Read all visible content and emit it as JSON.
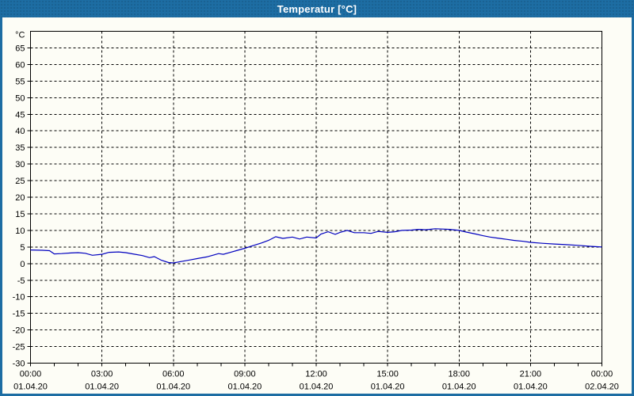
{
  "window": {
    "title": "Temperatur [°C]"
  },
  "colors": {
    "titlebar": "#1d6da3",
    "window_border": "#1d6da3",
    "chart_background": "#fdfdf6",
    "line_color": "#0000bf",
    "grid_color": "#000000",
    "text_color": "#000000"
  },
  "chart_data": {
    "type": "line",
    "title": "Temperatur [°C]",
    "grid": "dashed",
    "legend": "none",
    "y_axis": {
      "unit_label": "°C",
      "min": -30,
      "max": 70,
      "tick_min": -30,
      "tick_max": 65,
      "tick_step": 5
    },
    "x_axis": {
      "hours_span": 24,
      "minor_tick_step": 1,
      "ticks": [
        {
          "h": 0,
          "time": "00:00",
          "date": "01.04.20"
        },
        {
          "h": 3,
          "time": "03:00",
          "date": "01.04.20"
        },
        {
          "h": 6,
          "time": "06:00",
          "date": "01.04.20"
        },
        {
          "h": 9,
          "time": "09:00",
          "date": "01.04.20"
        },
        {
          "h": 12,
          "time": "12:00",
          "date": "01.04.20"
        },
        {
          "h": 15,
          "time": "15:00",
          "date": "01.04.20"
        },
        {
          "h": 18,
          "time": "18:00",
          "date": "01.04.20"
        },
        {
          "h": 21,
          "time": "21:00",
          "date": "01.04.20"
        },
        {
          "h": 24,
          "time": "00:00",
          "date": "02.04.20"
        }
      ]
    },
    "series": [
      {
        "name": "Temperatur",
        "color": "#0000bf",
        "points": [
          [
            0.0,
            4.1
          ],
          [
            0.5,
            4.0
          ],
          [
            0.8,
            3.9
          ],
          [
            1.0,
            2.9
          ],
          [
            1.3,
            3.0
          ],
          [
            1.7,
            3.2
          ],
          [
            2.0,
            3.3
          ],
          [
            2.3,
            3.1
          ],
          [
            2.6,
            2.5
          ],
          [
            3.0,
            2.8
          ],
          [
            3.3,
            3.4
          ],
          [
            3.7,
            3.5
          ],
          [
            4.0,
            3.3
          ],
          [
            4.3,
            2.9
          ],
          [
            4.7,
            2.4
          ],
          [
            5.0,
            1.8
          ],
          [
            5.2,
            2.1
          ],
          [
            5.5,
            1.0
          ],
          [
            5.8,
            0.3
          ],
          [
            6.0,
            0.2
          ],
          [
            6.3,
            0.6
          ],
          [
            6.7,
            1.1
          ],
          [
            7.0,
            1.5
          ],
          [
            7.4,
            2.0
          ],
          [
            7.7,
            2.6
          ],
          [
            7.9,
            3.0
          ],
          [
            8.1,
            2.8
          ],
          [
            8.4,
            3.4
          ],
          [
            8.7,
            4.0
          ],
          [
            9.0,
            4.6
          ],
          [
            9.3,
            5.3
          ],
          [
            9.7,
            6.2
          ],
          [
            10.0,
            7.0
          ],
          [
            10.3,
            8.1
          ],
          [
            10.6,
            7.6
          ],
          [
            11.0,
            8.0
          ],
          [
            11.3,
            7.4
          ],
          [
            11.6,
            8.0
          ],
          [
            12.0,
            7.7
          ],
          [
            12.2,
            8.9
          ],
          [
            12.5,
            9.6
          ],
          [
            12.8,
            8.8
          ],
          [
            13.0,
            9.4
          ],
          [
            13.3,
            10.0
          ],
          [
            13.6,
            9.3
          ],
          [
            14.0,
            9.3
          ],
          [
            14.3,
            9.1
          ],
          [
            14.6,
            9.7
          ],
          [
            15.0,
            9.4
          ],
          [
            15.3,
            9.6
          ],
          [
            15.6,
            10.0
          ],
          [
            16.0,
            10.1
          ],
          [
            16.3,
            10.3
          ],
          [
            16.6,
            10.2
          ],
          [
            17.0,
            10.5
          ],
          [
            17.3,
            10.4
          ],
          [
            17.6,
            10.3
          ],
          [
            18.0,
            10.0
          ],
          [
            18.3,
            9.5
          ],
          [
            18.7,
            8.9
          ],
          [
            19.0,
            8.4
          ],
          [
            19.3,
            8.0
          ],
          [
            19.7,
            7.6
          ],
          [
            20.0,
            7.3
          ],
          [
            20.3,
            7.0
          ],
          [
            20.7,
            6.7
          ],
          [
            21.0,
            6.4
          ],
          [
            21.5,
            6.1
          ],
          [
            22.0,
            5.9
          ],
          [
            22.5,
            5.7
          ],
          [
            23.0,
            5.5
          ],
          [
            23.5,
            5.2
          ],
          [
            24.0,
            5.0
          ]
        ]
      }
    ]
  }
}
